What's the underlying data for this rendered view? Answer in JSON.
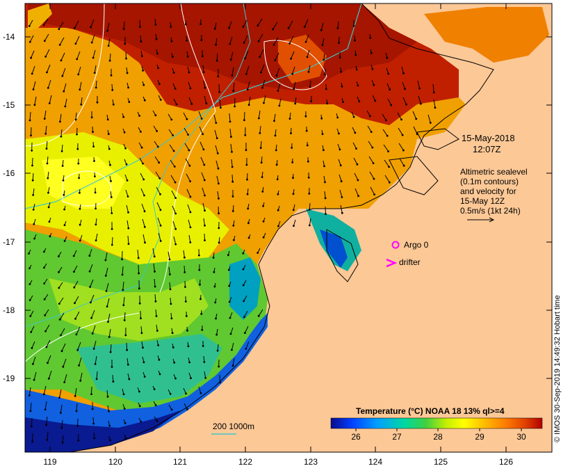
{
  "map": {
    "lat_ticks": [
      "-14",
      "-15",
      "-16",
      "-17",
      "-18",
      "-19"
    ],
    "lon_ticks": [
      "119",
      "120",
      "121",
      "122",
      "123",
      "124",
      "125",
      "126"
    ],
    "date_text": "15-May-2018",
    "time_text": "12:07Z",
    "info_lines": [
      "Altimetric sealevel",
      "(0.1m contours)",
      "and velocity for",
      "15-May 12Z",
      "0.5m/s (1kt 24h)"
    ],
    "argo_label": "Argo 0",
    "drifter_label": "drifter",
    "depth_label": "200  1000m",
    "colorbar_title": "Temperature (°C) NOAA 18 13% ql>=4",
    "colorbar_ticks": [
      "26",
      "27",
      "28",
      "29",
      "30"
    ],
    "credit": "© IMOS 30-Sep-2019 14:49:32 Hobart time",
    "colors": {
      "land": "#fcc896",
      "argo": "#ff00ff",
      "depth_contour": "#40c8c8",
      "colorbar": [
        "#0a0a8c",
        "#0040ff",
        "#00a0ff",
        "#00d8a0",
        "#40d040",
        "#c8f000",
        "#ffff00",
        "#ffc000",
        "#ff8000",
        "#e04000",
        "#b00000"
      ]
    }
  }
}
